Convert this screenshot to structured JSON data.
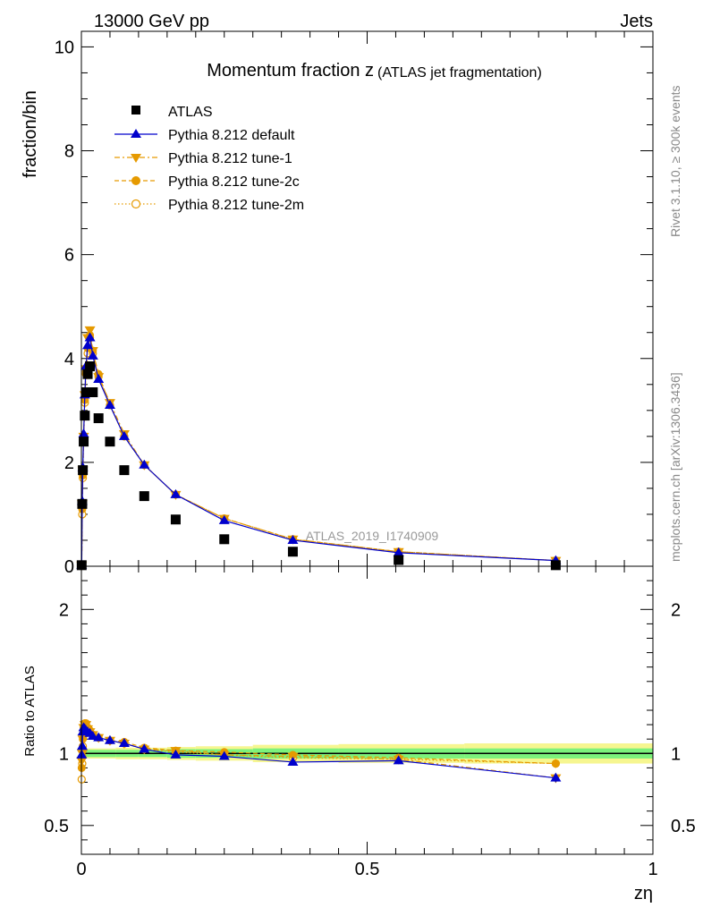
{
  "header": {
    "energy_label": "13000 GeV pp",
    "category_label": "Jets",
    "rivet_label": "Rivet 3.1.10, ≥ 300k events",
    "mcplots_label": "mcplots.cern.ch [arXiv:1306.3436]"
  },
  "colors": {
    "atlas": "#000000",
    "default": "#0000cc",
    "tune": "#e69a00",
    "band_inner": "#7cf27c",
    "band_outer": "#f6f690"
  },
  "chart_data": [
    {
      "type": "line",
      "title": "Momentum fraction z",
      "title_suffix": "(ATLAS jet fragmentation)",
      "ylabel": "fraction/bin",
      "watermark": "ATLAS_2019_I1740909",
      "xlim": [
        0,
        1
      ],
      "ylim": [
        0,
        10.3
      ],
      "yticks": [
        0,
        2,
        4,
        6,
        8,
        10
      ],
      "ytick_labels": [
        "0",
        "2",
        "4",
        "6",
        "8",
        "10"
      ],
      "x": [
        0.0005,
        0.0015,
        0.0025,
        0.004,
        0.006,
        0.008,
        0.011,
        0.015,
        0.02,
        0.03,
        0.05,
        0.075,
        0.11,
        0.165,
        0.25,
        0.37,
        0.555,
        0.83
      ],
      "series": [
        {
          "name": "ATLAS",
          "marker": "square",
          "values": [
            0.02,
            1.2,
            1.85,
            2.4,
            2.9,
            3.35,
            3.7,
            3.85,
            3.35,
            2.85,
            2.4,
            1.85,
            1.35,
            0.9,
            0.52,
            0.28,
            0.12,
            0.02
          ]
        },
        {
          "name": "Pythia 8.212 default",
          "marker": "triangle-up",
          "values": [
            0.02,
            1.25,
            1.9,
            2.55,
            3.3,
            3.85,
            4.25,
            4.4,
            4.05,
            3.6,
            3.1,
            2.5,
            1.95,
            1.38,
            0.88,
            0.5,
            0.26,
            0.11
          ]
        },
        {
          "name": "Pythia 8.212 tune-1",
          "marker": "triangle-down",
          "values": [
            0.02,
            1.2,
            1.85,
            2.5,
            3.3,
            3.8,
            4.4,
            4.55,
            4.15,
            3.65,
            3.15,
            2.55,
            1.95,
            1.38,
            0.92,
            0.52,
            0.28,
            0.11
          ]
        },
        {
          "name": "Pythia 8.212 tune-2c",
          "marker": "circle-filled",
          "values": [
            0.02,
            1.1,
            1.75,
            2.45,
            3.2,
            3.75,
            4.2,
            4.45,
            4.15,
            3.7,
            3.1,
            2.5,
            1.95,
            1.38,
            0.92,
            0.52,
            0.28,
            0.11
          ]
        },
        {
          "name": "Pythia 8.212 tune-2m",
          "marker": "circle-open",
          "values": [
            0.02,
            1.0,
            1.7,
            2.4,
            3.15,
            3.7,
            4.1,
            4.4,
            4.1,
            3.65,
            3.1,
            2.5,
            1.95,
            1.38,
            0.92,
            0.52,
            0.28,
            0.11
          ]
        }
      ]
    },
    {
      "type": "line",
      "ylabel": "Ratio to ATLAS",
      "xlabel": "zη",
      "xlim": [
        0,
        1
      ],
      "ylim": [
        0.3,
        2.3
      ],
      "xticks": [
        0,
        0.5,
        1
      ],
      "xtick_labels": [
        "0",
        "0.5",
        "1"
      ],
      "yticks": [
        0.5,
        1,
        2
      ],
      "ytick_labels": [
        "0.5",
        "1",
        "2"
      ],
      "x": [
        0.0005,
        0.0015,
        0.0025,
        0.004,
        0.006,
        0.008,
        0.011,
        0.015,
        0.02,
        0.03,
        0.05,
        0.075,
        0.11,
        0.165,
        0.25,
        0.37,
        0.555,
        0.83
      ],
      "band_edges": [
        0,
        0.06,
        0.1,
        0.15,
        0.2,
        0.3,
        0.45,
        0.67,
        1.0
      ],
      "band_inner": [
        0.025,
        0.025,
        0.025,
        0.03,
        0.03,
        0.035,
        0.035,
        0.035
      ],
      "band_outer": [
        0.035,
        0.04,
        0.04,
        0.045,
        0.05,
        0.06,
        0.065,
        0.07
      ],
      "series": [
        {
          "name": "Pythia 8.212 default",
          "values": [
            0.99,
            1.05,
            1.15,
            1.18,
            1.17,
            1.16,
            1.15,
            1.14,
            1.12,
            1.11,
            1.09,
            1.07,
            1.03,
            0.99,
            0.98,
            0.94,
            0.95,
            0.83
          ]
        },
        {
          "name": "Pythia 8.212 tune-1",
          "values": [
            0.95,
            1.0,
            1.1,
            1.18,
            1.2,
            1.2,
            1.17,
            1.15,
            1.13,
            1.11,
            1.09,
            1.07,
            1.03,
            1.02,
            0.99,
            0.98,
            0.96,
            0.83
          ]
        },
        {
          "name": "Pythia 8.212 tune-2c",
          "values": [
            0.9,
            0.98,
            1.1,
            1.18,
            1.21,
            1.21,
            1.18,
            1.16,
            1.13,
            1.11,
            1.09,
            1.08,
            1.04,
            1.02,
            1.01,
            0.99,
            0.97,
            0.93
          ]
        },
        {
          "name": "Pythia 8.212 tune-2m",
          "values": [
            0.82,
            0.93,
            1.05,
            1.15,
            1.19,
            1.19,
            1.17,
            1.15,
            1.13,
            1.11,
            1.09,
            1.07,
            1.03,
            1.01,
            0.99,
            0.97,
            0.96,
            0.93
          ]
        }
      ]
    }
  ]
}
